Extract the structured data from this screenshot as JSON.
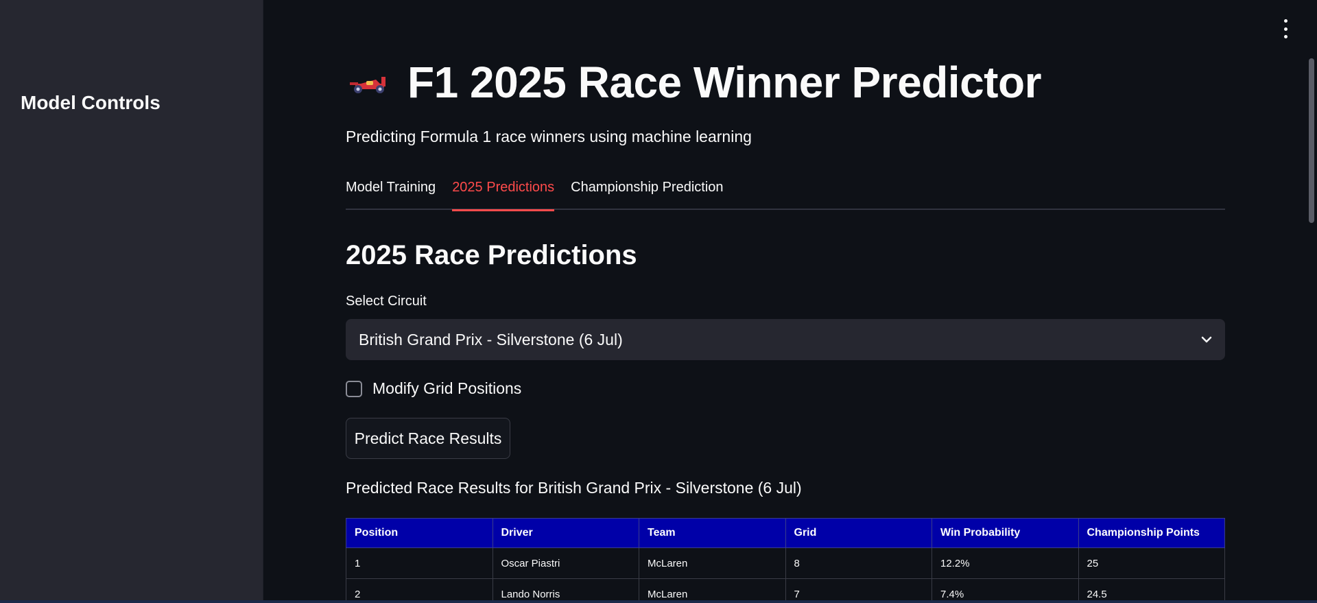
{
  "sidebar": {
    "title": "Model Controls"
  },
  "header": {
    "title": "F1 2025 Race Winner Predictor",
    "subtitle": "Predicting Formula 1 race winners using machine learning"
  },
  "tabs": [
    {
      "label": "Model Training",
      "active": false
    },
    {
      "label": "2025 Predictions",
      "active": true
    },
    {
      "label": "Championship Prediction",
      "active": false
    }
  ],
  "section": {
    "heading": "2025 Race Predictions",
    "select_label": "Select Circuit",
    "select_value": "British Grand Prix - Silverstone (6 Jul)",
    "checkbox_label": "Modify Grid Positions",
    "checkbox_checked": false,
    "predict_button": "Predict Race Results",
    "results_heading": "Predicted Race Results for British Grand Prix - Silverstone (6 Jul)"
  },
  "table": {
    "headers": [
      "Position",
      "Driver",
      "Team",
      "Grid",
      "Win Probability",
      "Championship Points"
    ],
    "rows": [
      [
        "1",
        "Oscar Piastri",
        "McLaren",
        "8",
        "12.2%",
        "25"
      ],
      [
        "2",
        "Lando Norris",
        "McLaren",
        "7",
        "7.4%",
        "24.5"
      ]
    ]
  },
  "icons": {
    "title_icon": "race-car-icon",
    "select_icon": "chevron-down-icon",
    "menu_icon": "vertical-ellipsis-icon"
  },
  "colors": {
    "accent": "#ff4b4b",
    "table_header": "#0000a8",
    "background": "#0e1117",
    "sidebar": "#262730"
  }
}
